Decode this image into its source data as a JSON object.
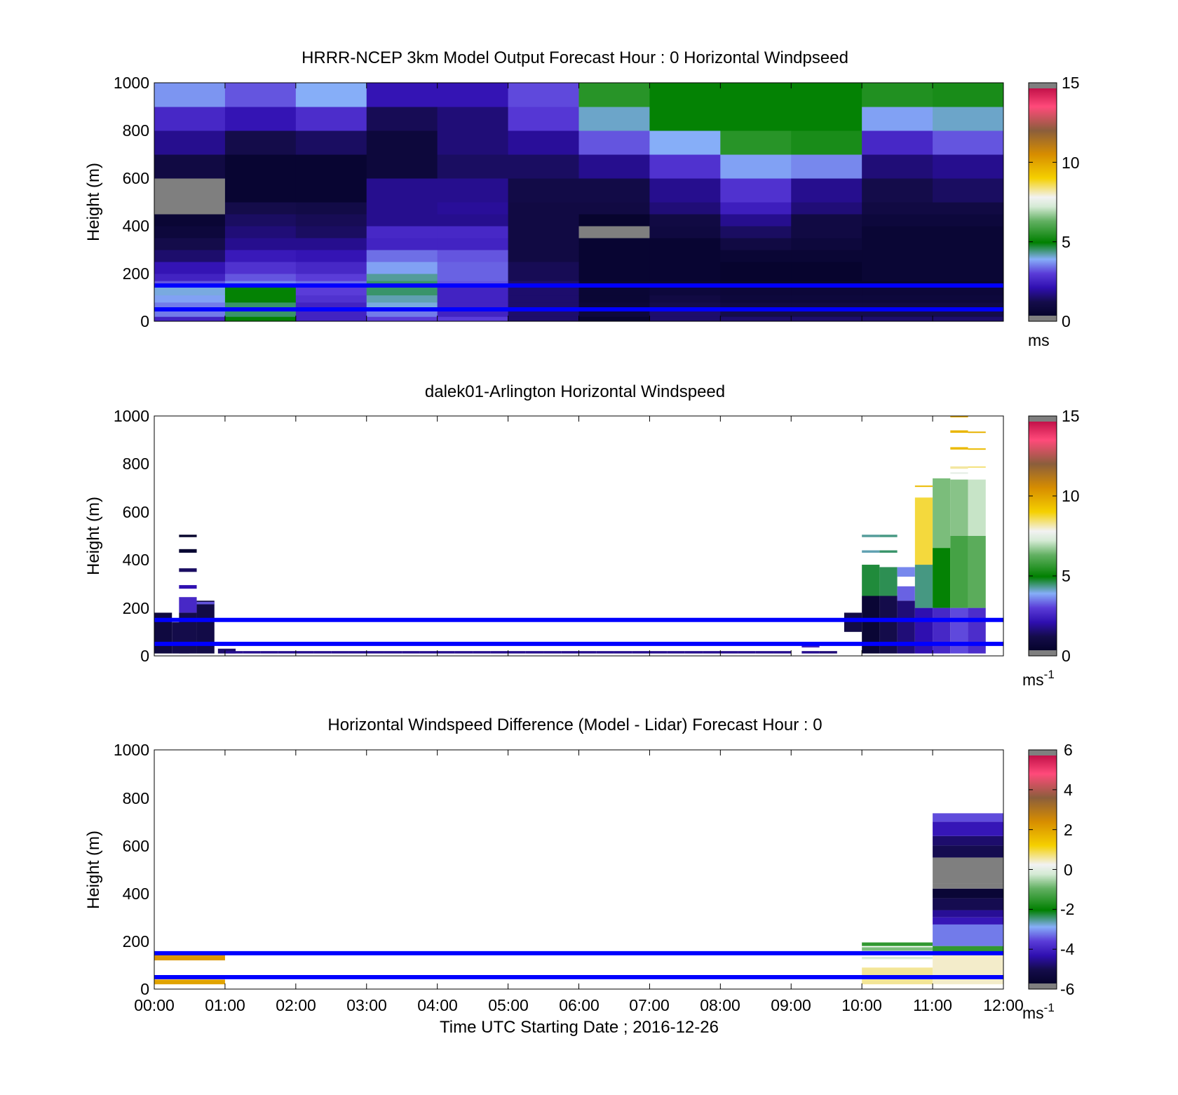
{
  "xlabel": "Time UTC  Starting Date ; 2016-12-26",
  "chart_data": [
    {
      "type": "heatmap",
      "title": "HRRR-NCEP 3km Model Output   Forecast Hour : 0 Horizontal Windpseed",
      "ylabel": "Height (m)",
      "ylim": [
        0,
        1000
      ],
      "yticks": [
        "0",
        "200",
        "400",
        "600",
        "800",
        "1000"
      ],
      "xticks": [],
      "xlim_hours": [
        0,
        12
      ],
      "colorbar": {
        "min": 0,
        "max": 15,
        "ticks": [
          "0",
          "5",
          "10",
          "15"
        ],
        "unit": "ms",
        "unit_sup": ""
      },
      "reference_lines_m": [
        150,
        50
      ],
      "x_hours": [
        0,
        1,
        2,
        3,
        4,
        5,
        6,
        7,
        8,
        9,
        10,
        11,
        12
      ],
      "height_edges_m": [
        0,
        20,
        50,
        80,
        110,
        150,
        170,
        200,
        250,
        300,
        350,
        400,
        450,
        500,
        600,
        700,
        800,
        900,
        1000
      ],
      "values_ms": [
        [
          2.5,
          5,
          2.5,
          3,
          3,
          1.5,
          0.5,
          1.5,
          1.5,
          1.5,
          1.5,
          1.5
        ],
        [
          3.5,
          4.5,
          2.5,
          3.5,
          2.5,
          1.5,
          0.8,
          1.5,
          1.2,
          1.2,
          1.2,
          1.2
        ],
        [
          3.5,
          4.5,
          2.5,
          4,
          2.5,
          1.5,
          0.7,
          1.2,
          1.0,
          1.0,
          1.0,
          1.0
        ],
        [
          3.8,
          5,
          2.8,
          4.2,
          2.5,
          1.5,
          0.6,
          1.0,
          0.8,
          0.8,
          0.8,
          0.8
        ],
        [
          4,
          5,
          3,
          4.5,
          2.5,
          1.5,
          0.6,
          0.8,
          0.7,
          0.7,
          0.7,
          0.7
        ],
        [
          3.2,
          3.6,
          3.4,
          4.5,
          3.2,
          1.5,
          0.6,
          0.6,
          0.5,
          0.5,
          0.5,
          0.5
        ],
        [
          2.5,
          3.2,
          3,
          4.3,
          3.3,
          1.3,
          0.5,
          0.5,
          0.4,
          0.4,
          0.6,
          0.6
        ],
        [
          2.2,
          2.8,
          2.6,
          3.8,
          3.3,
          1.3,
          0.5,
          0.5,
          0.4,
          0.4,
          0.6,
          0.6
        ],
        [
          1.5,
          2.3,
          2.2,
          3.4,
          3.2,
          1,
          0.5,
          0.5,
          0.6,
          0.6,
          0.6,
          0.6
        ],
        [
          1.2,
          1.8,
          1.8,
          2.5,
          2.5,
          1,
          0.5,
          0.5,
          1,
          0.8,
          0.6,
          0.6
        ],
        [
          0.8,
          1.6,
          1.4,
          2.6,
          2.6,
          1,
          -9,
          0.9,
          1.4,
          1,
          0.6,
          0.6
        ],
        [
          0.6,
          1.4,
          1.3,
          1.8,
          1.8,
          1,
          0.4,
          1.0,
          1.8,
          1,
          0.8,
          0.8
        ],
        [
          -9,
          1.2,
          1.1,
          1.8,
          1.9,
          1,
          1,
          1.6,
          2.4,
          1.6,
          1,
          1
        ],
        [
          -9,
          0.5,
          0.5,
          1.8,
          1.8,
          1.1,
          1.1,
          1.8,
          2.8,
          1.8,
          1.2,
          1.4
        ],
        [
          1,
          0.5,
          0.5,
          0.8,
          1.4,
          1.4,
          1.8,
          2.8,
          3.8,
          3.6,
          1.6,
          1.8
        ],
        [
          1.8,
          1.2,
          1.4,
          0.8,
          1.6,
          1.9,
          3.2,
          3.9,
          5.5,
          5.3,
          2.6,
          3.2
        ],
        [
          2.6,
          2.2,
          2.7,
          1.3,
          1.6,
          2.9,
          4.1,
          5,
          5,
          5,
          3.8,
          4.1
        ],
        [
          3.7,
          3.2,
          3.9,
          2.2,
          2.2,
          3.1,
          5.5,
          5,
          5,
          5,
          5.4,
          5.3
        ]
      ]
    },
    {
      "type": "heatmap",
      "title": "dalek01-Arlington  Horizontal Windspeed",
      "ylabel": "Height (m)",
      "ylim": [
        0,
        1000
      ],
      "yticks": [
        "0",
        "200",
        "400",
        "600",
        "800",
        "1000"
      ],
      "xticks": [],
      "xlim_hours": [
        0,
        12
      ],
      "colorbar": {
        "min": 0,
        "max": 15,
        "ticks": [
          "0",
          "5",
          "10",
          "15"
        ],
        "unit": "ms",
        "unit_sup": "-1"
      },
      "reference_lines_m": [
        150,
        50
      ],
      "column_width_hours": 0.25,
      "columns": [
        {
          "t": 0.0,
          "bins": [
            [
              10,
              180,
              0.9
            ]
          ]
        },
        {
          "t": 0.25,
          "bins": [
            [
              10,
              140,
              1.2
            ]
          ]
        },
        {
          "t": 0.35,
          "bins": [
            [
              10,
              180,
              1.2
            ],
            [
              180,
              245,
              2.6
            ],
            [
              280,
              295,
              2.1
            ],
            [
              350,
              365,
              1.4
            ],
            [
              430,
              445,
              0.5
            ],
            [
              495,
              505,
              0.3
            ]
          ]
        },
        {
          "t": 0.6,
          "bins": [
            [
              10,
              230,
              1.1
            ],
            [
              215,
              225,
              3.2
            ]
          ]
        },
        {
          "t": 0.9,
          "bins": [
            [
              10,
              30,
              1.5
            ]
          ]
        },
        {
          "t": 1.0,
          "bins": [
            [
              10,
              20,
              1.8
            ]
          ]
        },
        {
          "t": 1.25,
          "bins": [
            [
              10,
              20,
              1.8
            ]
          ]
        },
        {
          "t": 1.5,
          "bins": [
            [
              10,
              20,
              1.8
            ]
          ]
        },
        {
          "t": 1.75,
          "bins": [
            [
              10,
              20,
              1.8
            ]
          ]
        },
        {
          "t": 2.0,
          "bins": [
            [
              10,
              20,
              1.8
            ]
          ]
        },
        {
          "t": 2.25,
          "bins": [
            [
              10,
              20,
              1.8
            ]
          ]
        },
        {
          "t": 2.5,
          "bins": [
            [
              10,
              20,
              1.8
            ]
          ]
        },
        {
          "t": 2.75,
          "bins": [
            [
              10,
              20,
              1.8
            ]
          ]
        },
        {
          "t": 3.0,
          "bins": [
            [
              10,
              20,
              1.8
            ]
          ]
        },
        {
          "t": 3.25,
          "bins": [
            [
              10,
              20,
              1.8
            ]
          ]
        },
        {
          "t": 3.5,
          "bins": [
            [
              10,
              20,
              1.8
            ]
          ]
        },
        {
          "t": 3.75,
          "bins": [
            [
              10,
              20,
              1.8
            ]
          ]
        },
        {
          "t": 4.0,
          "bins": [
            [
              10,
              20,
              1.8
            ]
          ]
        },
        {
          "t": 4.25,
          "bins": [
            [
              10,
              20,
              1.8
            ]
          ]
        },
        {
          "t": 4.5,
          "bins": [
            [
              10,
              20,
              1.8
            ]
          ]
        },
        {
          "t": 4.75,
          "bins": [
            [
              10,
              20,
              1.8
            ]
          ]
        },
        {
          "t": 5.0,
          "bins": [
            [
              10,
              20,
              1.8
            ]
          ]
        },
        {
          "t": 5.25,
          "bins": [
            [
              10,
              20,
              1.8
            ]
          ]
        },
        {
          "t": 5.5,
          "bins": [
            [
              10,
              20,
              1.8
            ]
          ]
        },
        {
          "t": 5.75,
          "bins": [
            [
              10,
              20,
              1.8
            ]
          ]
        },
        {
          "t": 6.0,
          "bins": [
            [
              10,
              20,
              1.8
            ]
          ]
        },
        {
          "t": 6.25,
          "bins": [
            [
              10,
              20,
              1.8
            ]
          ]
        },
        {
          "t": 6.5,
          "bins": [
            [
              10,
              20,
              1.8
            ]
          ]
        },
        {
          "t": 6.75,
          "bins": [
            [
              10,
              20,
              1.8
            ]
          ]
        },
        {
          "t": 7.0,
          "bins": [
            [
              10,
              20,
              1.8
            ]
          ]
        },
        {
          "t": 7.25,
          "bins": [
            [
              10,
              20,
              1.8
            ]
          ]
        },
        {
          "t": 7.5,
          "bins": [
            [
              10,
              20,
              1.8
            ]
          ]
        },
        {
          "t": 7.75,
          "bins": [
            [
              10,
              20,
              1.8
            ]
          ]
        },
        {
          "t": 8.0,
          "bins": [
            [
              10,
              20,
              1.8
            ]
          ]
        },
        {
          "t": 8.25,
          "bins": [
            [
              10,
              20,
              1.8
            ]
          ]
        },
        {
          "t": 8.5,
          "bins": [
            [
              10,
              20,
              1.8
            ]
          ]
        },
        {
          "t": 8.75,
          "bins": [
            [
              10,
              20,
              1.8
            ]
          ]
        },
        {
          "t": 9.15,
          "bins": [
            [
              10,
              20,
              1.8
            ],
            [
              35,
              45,
              2.5
            ]
          ]
        },
        {
          "t": 9.4,
          "bins": [
            [
              10,
              20,
              1.6
            ]
          ]
        },
        {
          "t": 9.75,
          "bins": [
            [
              100,
              180,
              1.1
            ]
          ]
        },
        {
          "t": 10.0,
          "bins": [
            [
              10,
              250,
              0.6
            ],
            [
              250,
              380,
              4.7
            ],
            [
              430,
              440,
              4.2
            ],
            [
              495,
              505,
              4.3
            ]
          ]
        },
        {
          "t": 10.25,
          "bins": [
            [
              10,
              250,
              1.2
            ],
            [
              250,
              370,
              4.6
            ],
            [
              430,
              440,
              4.5
            ],
            [
              495,
              505,
              4.4
            ]
          ]
        },
        {
          "t": 10.5,
          "bins": [
            [
              10,
              230,
              1.6
            ],
            [
              230,
              290,
              3.3
            ],
            [
              330,
              370,
              3.6
            ]
          ]
        },
        {
          "t": 10.75,
          "bins": [
            [
              10,
              200,
              2.1
            ],
            [
              200,
              380,
              4.4
            ],
            [
              380,
              660,
              8.7
            ],
            [
              705,
              710,
              9.5
            ]
          ]
        },
        {
          "t": 11.0,
          "bins": [
            [
              10,
              200,
              2.6
            ],
            [
              200,
              450,
              5.0
            ],
            [
              450,
              740,
              6.5
            ]
          ]
        },
        {
          "t": 11.25,
          "bins": [
            [
              10,
              200,
              3.1
            ],
            [
              200,
              500,
              5.9
            ],
            [
              500,
              735,
              6.6
            ],
            [
              760,
              765,
              7.5
            ],
            [
              780,
              790,
              8.2
            ],
            [
              860,
              870,
              9.5
            ],
            [
              930,
              940,
              9.6
            ],
            [
              995,
              1000,
              9.8
            ]
          ]
        },
        {
          "t": 11.5,
          "bins": [
            [
              10,
              200,
              2.7
            ],
            [
              200,
              500,
              6.2
            ],
            [
              500,
              735,
              7.1
            ],
            [
              785,
              790,
              8.4
            ],
            [
              860,
              865,
              9.5
            ],
            [
              930,
              935,
              9.7
            ]
          ]
        }
      ]
    },
    {
      "type": "heatmap",
      "title": "Horizontal Windspeed Difference (Model - Lidar) Forecast Hour : 0",
      "ylabel": "Height (m)",
      "ylim": [
        0,
        1000
      ],
      "yticks": [
        "0",
        "200",
        "400",
        "600",
        "800",
        "1000"
      ],
      "xticks": [
        "00:00",
        "01:00",
        "02:00",
        "03:00",
        "04:00",
        "05:00",
        "06:00",
        "07:00",
        "08:00",
        "09:00",
        "10:00",
        "11:00",
        "12:00"
      ],
      "xlim_hours": [
        0,
        12
      ],
      "colorbar": {
        "min": -6,
        "max": 6,
        "ticks": [
          "-6",
          "-4",
          "-2",
          "0",
          "2",
          "4",
          "6"
        ],
        "unit": "ms",
        "unit_sup": "-1"
      },
      "reference_lines_m": [
        150,
        50
      ],
      "column_width_hours": 1,
      "columns": [
        {
          "t": 0,
          "bins": [
            [
              20,
              40,
              2.0
            ],
            [
              120,
              145,
              2.2
            ]
          ]
        },
        {
          "t": 10,
          "bins": [
            [
              20,
              90,
              0.6
            ],
            [
              125,
              135,
              -0.2
            ],
            [
              160,
              175,
              -0.8
            ],
            [
              180,
              195,
              -1.5
            ]
          ]
        },
        {
          "t": 11,
          "bins": [
            [
              20,
              150,
              0.4
            ],
            [
              150,
              180,
              -1.5
            ],
            [
              180,
              270,
              -3.2
            ],
            [
              270,
              300,
              -4.2
            ],
            [
              300,
              330,
              -4.5
            ],
            [
              330,
              380,
              -5.0
            ],
            [
              380,
              420,
              -5.5
            ],
            [
              420,
              440,
              -6.5
            ],
            [
              440,
              550,
              -8
            ],
            [
              550,
              600,
              -5.0
            ],
            [
              600,
              640,
              -4.8
            ],
            [
              640,
              700,
              -4.2
            ],
            [
              700,
              735,
              -3.5
            ]
          ]
        }
      ]
    }
  ]
}
